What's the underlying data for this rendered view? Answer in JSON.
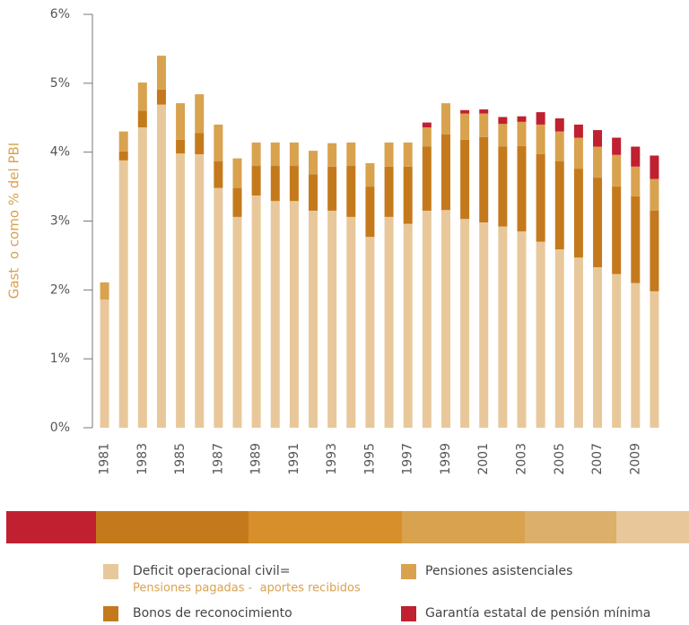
{
  "chart_data": {
    "type": "stacked_bar",
    "ylabel": "Gast  o como % del PBI",
    "categories": [
      "1981",
      null,
      "1983",
      null,
      "1985",
      null,
      "1987",
      null,
      "1989",
      null,
      "1991",
      null,
      "1993",
      null,
      "1995",
      null,
      "1997",
      null,
      "1999",
      null,
      "2001",
      null,
      "2003",
      null,
      "2005",
      null,
      "2007",
      null,
      "2009",
      null
    ],
    "series": [
      {
        "name": "Deficit operacional civil=",
        "color": "#e8c89a",
        "values": [
          1.86,
          3.88,
          4.36,
          4.69,
          3.98,
          3.97,
          3.48,
          3.06,
          3.37,
          3.29,
          3.29,
          3.15,
          3.15,
          3.06,
          2.77,
          3.06,
          2.96,
          3.15,
          3.16,
          3.03,
          2.98,
          2.92,
          2.85,
          2.7,
          2.59,
          2.47,
          2.33,
          2.23,
          2.1,
          1.98
        ]
      },
      {
        "name": "Bonos de reconocimiento",
        "color": "#c47a1c",
        "values": [
          0,
          0.13,
          0.24,
          0.22,
          0.2,
          0.31,
          0.39,
          0.42,
          0.43,
          0.51,
          0.51,
          0.53,
          0.64,
          0.74,
          0.73,
          0.73,
          0.83,
          0.93,
          1.1,
          1.15,
          1.24,
          1.16,
          1.24,
          1.27,
          1.28,
          1.29,
          1.3,
          1.27,
          1.26,
          1.17
        ]
      },
      {
        "name": "Pensiones asistenciales",
        "color": "#d9a24f",
        "values": [
          0.25,
          0.29,
          0.41,
          0.49,
          0.53,
          0.56,
          0.53,
          0.43,
          0.34,
          0.34,
          0.34,
          0.34,
          0.34,
          0.34,
          0.34,
          0.35,
          0.35,
          0.28,
          0.45,
          0.38,
          0.34,
          0.33,
          0.35,
          0.43,
          0.43,
          0.45,
          0.45,
          0.46,
          0.43,
          0.46
        ]
      },
      {
        "name": "Garantía estatal de pensión mínima",
        "color": "#c0202f",
        "values": [
          0,
          0,
          0,
          0,
          0,
          0,
          0,
          0,
          0,
          0,
          0,
          0,
          0,
          0,
          0,
          0,
          0,
          0.07,
          0,
          0.05,
          0.06,
          0.1,
          0.08,
          0.18,
          0.19,
          0.19,
          0.24,
          0.25,
          0.29,
          0.34
        ]
      }
    ],
    "legend_note": "Pensiones pagadas -  aportes recibidos",
    "ylim": [
      0,
      6
    ],
    "yticks": [
      {
        "value": 0,
        "label": "0%"
      },
      {
        "value": 1,
        "label": "1%"
      },
      {
        "value": 2,
        "label": "2%"
      },
      {
        "value": 3,
        "label": "3%"
      },
      {
        "value": 4,
        "label": "4%"
      },
      {
        "value": 5,
        "label": "5%"
      },
      {
        "value": 6,
        "label": "6%"
      }
    ]
  }
}
